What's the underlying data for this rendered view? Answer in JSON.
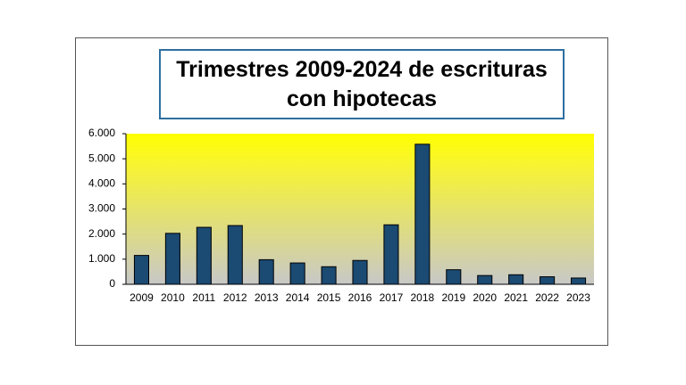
{
  "chart_data": {
    "type": "bar",
    "title": "Trimestres 2009-2024 de escrituras con hipotecas",
    "categories": [
      "2009",
      "2010",
      "2011",
      "2012",
      "2013",
      "2014",
      "2015",
      "2016",
      "2017",
      "2018",
      "2019",
      "2020",
      "2021",
      "2022",
      "2023"
    ],
    "values": [
      1150,
      2030,
      2270,
      2340,
      980,
      850,
      700,
      950,
      2370,
      5580,
      580,
      350,
      380,
      300,
      250
    ],
    "color": "#1b4a72",
    "ylim": [
      0,
      6000
    ],
    "yticks": [
      0,
      {
        "value": 1000,
        "label": "1.000"
      },
      {
        "value": 2000,
        "label": "2.000"
      },
      {
        "value": 3000,
        "label": "3.000"
      },
      {
        "value": 4000,
        "label": "4.000"
      },
      {
        "value": 5000,
        "label": "5.000"
      },
      {
        "value": 6000,
        "label": "6.000"
      }
    ]
  }
}
